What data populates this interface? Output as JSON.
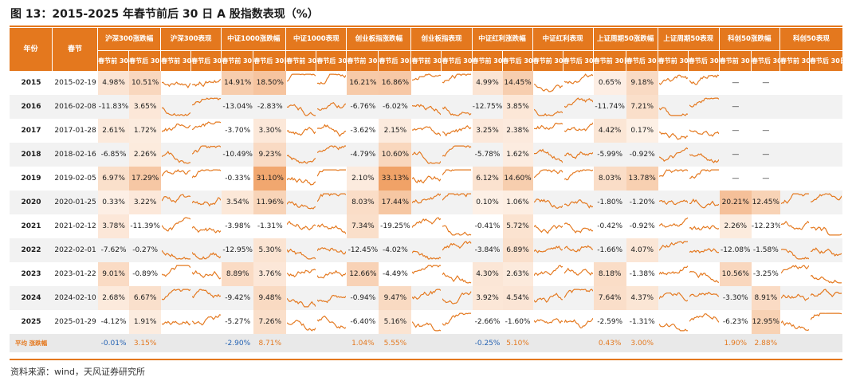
{
  "title": "图 13：2015-2025 年春节前后 30 日 A 股指数表现（%）",
  "source": "资料来源：wind，天风证券研究所",
  "colors": {
    "accent": "#e4781e",
    "line": "#e4781e"
  },
  "header": {
    "year": "年份",
    "festival": "春节",
    "sub_before": "春节前 30日",
    "sub_after": "春节后 30日",
    "indices": [
      {
        "chg": "沪深300涨跌幅",
        "perf": "沪深300表现"
      },
      {
        "chg": "中证1000涨跌幅",
        "perf": "中证1000表现"
      },
      {
        "chg": "创业板指涨跌幅",
        "perf": "创业板指表现"
      },
      {
        "chg": "中证红利涨跌幅",
        "perf": "中证红利表现"
      },
      {
        "chg": "上证周期50涨跌幅",
        "perf": "上证周期50表现"
      },
      {
        "chg": "科创50涨跌幅",
        "perf": "科创50表现"
      }
    ]
  },
  "rows": [
    {
      "year": "2015",
      "date": "2015-02-19",
      "v": [
        [
          "4.98%",
          "10.51%"
        ],
        [
          "14.91%",
          "18.50%"
        ],
        [
          "16.21%",
          "16.86%"
        ],
        [
          "4.99%",
          "14.45%"
        ],
        [
          "0.65%",
          "9.18%"
        ],
        [
          "—",
          "—"
        ]
      ]
    },
    {
      "year": "2016",
      "date": "2016-02-08",
      "v": [
        [
          "-11.83%",
          "3.65%"
        ],
        [
          "-13.04%",
          "-2.83%"
        ],
        [
          "-6.76%",
          "-6.02%"
        ],
        [
          "-12.75%",
          "3.85%"
        ],
        [
          "-11.74%",
          "7.21%"
        ],
        [
          "—",
          ""
        ]
      ]
    },
    {
      "year": "2017",
      "date": "2017-01-28",
      "v": [
        [
          "2.61%",
          "1.72%"
        ],
        [
          "-3.70%",
          "3.30%"
        ],
        [
          "-3.62%",
          "2.15%"
        ],
        [
          "3.25%",
          "2.38%"
        ],
        [
          "4.42%",
          "0.17%"
        ],
        [
          "—",
          "—"
        ]
      ]
    },
    {
      "year": "2018",
      "date": "2018-02-16",
      "v": [
        [
          "-6.85%",
          "2.26%"
        ],
        [
          "-10.49%",
          "9.23%"
        ],
        [
          "-4.79%",
          "10.60%"
        ],
        [
          "-5.78%",
          "1.62%"
        ],
        [
          "-5.99%",
          "-0.92%"
        ],
        [
          "—",
          "—"
        ]
      ]
    },
    {
      "year": "2019",
      "date": "2019-02-05",
      "v": [
        [
          "6.97%",
          "17.29%"
        ],
        [
          "-0.33%",
          "31.10%"
        ],
        [
          "2.10%",
          "33.13%"
        ],
        [
          "6.12%",
          "14.60%"
        ],
        [
          "8.03%",
          "13.78%"
        ],
        [
          "—",
          "—"
        ]
      ]
    },
    {
      "year": "2020",
      "date": "2020-01-25",
      "v": [
        [
          "0.33%",
          "3.22%"
        ],
        [
          "3.54%",
          "11.96%"
        ],
        [
          "8.03%",
          "17.44%"
        ],
        [
          "0.10%",
          "1.06%"
        ],
        [
          "-1.80%",
          "-1.20%"
        ],
        [
          "20.21%",
          "12.45%"
        ]
      ]
    },
    {
      "year": "2021",
      "date": "2021-02-12",
      "v": [
        [
          "3.78%",
          "-11.39%"
        ],
        [
          "-3.98%",
          "-1.31%"
        ],
        [
          "7.34%",
          "-19.25%"
        ],
        [
          "-0.41%",
          "5.72%"
        ],
        [
          "-0.42%",
          "-0.92%"
        ],
        [
          "2.26%",
          "-12.23%"
        ]
      ]
    },
    {
      "year": "2022",
      "date": "2022-02-01",
      "v": [
        [
          "-7.62%",
          "-0.27%"
        ],
        [
          "-12.95%",
          "5.30%"
        ],
        [
          "-12.45%",
          "-4.02%"
        ],
        [
          "-3.84%",
          "6.89%"
        ],
        [
          "-1.66%",
          "4.07%"
        ],
        [
          "-12.08%",
          "-1.58%"
        ]
      ]
    },
    {
      "year": "2023",
      "date": "2023-01-22",
      "v": [
        [
          "9.01%",
          "-0.89%"
        ],
        [
          "8.89%",
          "3.76%"
        ],
        [
          "12.66%",
          "-4.49%"
        ],
        [
          "4.30%",
          "2.63%"
        ],
        [
          "8.18%",
          "-1.38%"
        ],
        [
          "10.56%",
          "-3.25%"
        ]
      ]
    },
    {
      "year": "2024",
      "date": "2024-02-10",
      "v": [
        [
          "2.68%",
          "6.67%"
        ],
        [
          "-9.42%",
          "9.48%"
        ],
        [
          "-0.94%",
          "9.47%"
        ],
        [
          "3.92%",
          "4.54%"
        ],
        [
          "7.64%",
          "4.37%"
        ],
        [
          "-3.30%",
          "8.91%"
        ]
      ]
    },
    {
      "year": "2025",
      "date": "2025-01-29",
      "v": [
        [
          "-4.12%",
          "1.91%"
        ],
        [
          "-5.27%",
          "7.26%"
        ],
        [
          "-6.40%",
          "5.16%"
        ],
        [
          "-2.66%",
          "-1.60%"
        ],
        [
          "-2.59%",
          "-1.31%"
        ],
        [
          "-6.23%",
          "12.95%"
        ]
      ]
    }
  ],
  "average": {
    "label": "平均 涨跌幅",
    "v": [
      [
        "-0.01%",
        "3.15%"
      ],
      [
        "-2.90%",
        "8.71%"
      ],
      [
        "1.04%",
        "5.55%"
      ],
      [
        "-0.25%",
        "5.10%"
      ],
      [
        "0.43%",
        "3.00%"
      ],
      [
        "1.90%",
        "2.88%"
      ]
    ]
  }
}
